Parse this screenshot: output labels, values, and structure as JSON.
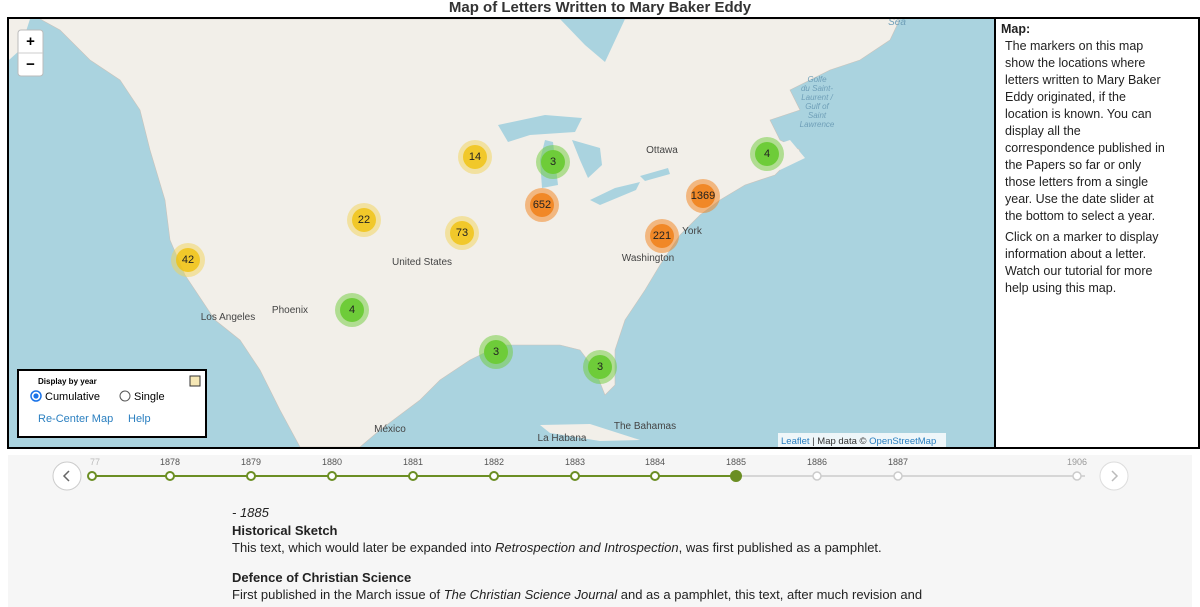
{
  "header": {
    "title": "Map of Letters Written to Mary Baker Eddy"
  },
  "map": {
    "zoom_in": "+",
    "zoom_out": "−",
    "markers": [
      14,
      3,
      652,
      4,
      1369,
      22,
      73,
      221,
      42,
      4,
      3,
      3
    ],
    "places": [
      "Ottawa",
      "York",
      "Washington",
      "United States",
      "Phoenix",
      "Los Angeles",
      "México",
      "La Habana",
      "The Bahamas",
      "Sea"
    ],
    "gulf_label": [
      "Golfe",
      "du Saint-",
      "Laurent /",
      "Gulf of",
      "Saint",
      "Lawrence"
    ],
    "attribution": {
      "leaflet": "Leaflet",
      "text": " | Map data © ",
      "osm": "OpenStreetMap"
    }
  },
  "controls": {
    "heading": "Display by year",
    "cumulative": "Cumulative",
    "single": "Single",
    "recenter": "Re-Center Map",
    "help": "Help"
  },
  "sidebar": {
    "heading": "Map:",
    "paragraphs": [
      "The markers on this map show the locations where letters written to Mary Baker Eddy originated, if the location is known. You can display all the correspondence published in the Papers so far or only those letters from a single year. Use the date slider at the bottom to select a year.",
      "Click on a marker to display information about a letter. Watch our tutorial for more help using this map."
    ]
  },
  "timeline": {
    "years": [
      "77",
      "1878",
      "1879",
      "1880",
      "1881",
      "1882",
      "1883",
      "1884",
      "1885",
      "1886",
      "1887",
      "1906"
    ]
  },
  "entries": {
    "date": "- 1885",
    "items": [
      {
        "title": "Historical Sketch",
        "text": [
          "This text, which would later be expanded into ",
          "Retrospection and Introspection",
          ", was first published as a pamphlet."
        ]
      },
      {
        "title": "Defence of Christian Science",
        "text": [
          "First published in the March issue of ",
          "The Christian Science Journal",
          " and as a pamphlet, this text, after much revision and"
        ]
      }
    ]
  }
}
